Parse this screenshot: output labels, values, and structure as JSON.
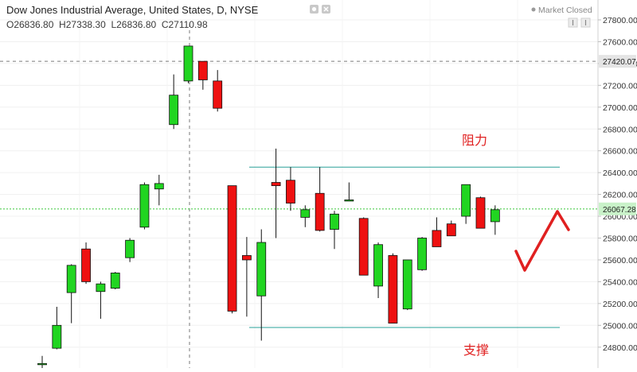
{
  "header": {
    "title": "Dow Jones Industrial Average, United States, D, NYSE",
    "ohlc": "O26836.80  H27338.30  L26836.80  C27110.98",
    "status": "Market Closed"
  },
  "price_tags": {
    "crosshair": "27420.07",
    "last": "26067.28"
  },
  "annotations": {
    "resistance": "阻力",
    "support": "支撑"
  },
  "colors": {
    "up": "#21d521",
    "down": "#ee1111",
    "outline": "#111111",
    "level_line": "#2aa198",
    "last_line": "#3ac83a",
    "annotation": "#e02020"
  },
  "chart_data": {
    "type": "candlestick",
    "title": "Dow Jones Industrial Average, United States, D, NYSE",
    "ylim": [
      24680,
      27900
    ],
    "y_ticks": [
      24800,
      25000,
      25200,
      25400,
      25600,
      25800,
      26000,
      26200,
      26400,
      26600,
      26800,
      27000,
      27200,
      27400,
      27600,
      27800
    ],
    "resistance_level": 26450,
    "support_level": 24980,
    "last_price": 26067.28,
    "crosshair_price": 27420.07,
    "candles": [
      {
        "o": 24650,
        "h": 24720,
        "l": 24600,
        "c": 24650
      },
      {
        "o": 24790,
        "h": 25170,
        "l": 24780,
        "c": 25000
      },
      {
        "o": 25300,
        "h": 25560,
        "l": 25020,
        "c": 25550
      },
      {
        "o": 25700,
        "h": 25760,
        "l": 25380,
        "c": 25400
      },
      {
        "o": 25310,
        "h": 25400,
        "l": 25060,
        "c": 25380
      },
      {
        "o": 25340,
        "h": 25490,
        "l": 25330,
        "c": 25480
      },
      {
        "o": 25620,
        "h": 25800,
        "l": 25580,
        "c": 25780
      },
      {
        "o": 25900,
        "h": 26310,
        "l": 25880,
        "c": 26290
      },
      {
        "o": 26250,
        "h": 26380,
        "l": 26100,
        "c": 26300
      },
      {
        "o": 26840,
        "h": 27300,
        "l": 26800,
        "c": 27110
      },
      {
        "o": 27240,
        "h": 27560,
        "l": 27220,
        "c": 27560
      },
      {
        "o": 27420,
        "h": 27420,
        "l": 27160,
        "c": 27250
      },
      {
        "o": 27240,
        "h": 27340,
        "l": 26960,
        "c": 26990
      },
      {
        "o": 26280,
        "h": 26280,
        "l": 25110,
        "c": 25130
      },
      {
        "o": 25640,
        "h": 25810,
        "l": 25080,
        "c": 25600
      },
      {
        "o": 25270,
        "h": 25880,
        "l": 24860,
        "c": 25760
      },
      {
        "o": 26310,
        "h": 26620,
        "l": 25800,
        "c": 26280
      },
      {
        "o": 26330,
        "h": 26450,
        "l": 26050,
        "c": 26120
      },
      {
        "o": 25990,
        "h": 26100,
        "l": 25900,
        "c": 26060
      },
      {
        "o": 26210,
        "h": 26450,
        "l": 25860,
        "c": 25870
      },
      {
        "o": 25880,
        "h": 26050,
        "l": 25700,
        "c": 26020
      },
      {
        "o": 26150,
        "h": 26310,
        "l": 26140,
        "c": 26150
      },
      {
        "o": 25980,
        "h": 25990,
        "l": 25460,
        "c": 25460
      },
      {
        "o": 25360,
        "h": 25760,
        "l": 25250,
        "c": 25740
      },
      {
        "o": 25640,
        "h": 25660,
        "l": 25020,
        "c": 25020
      },
      {
        "o": 25150,
        "h": 25600,
        "l": 25140,
        "c": 25600
      },
      {
        "o": 25510,
        "h": 25810,
        "l": 25500,
        "c": 25800
      },
      {
        "o": 25870,
        "h": 25990,
        "l": 25720,
        "c": 25720
      },
      {
        "o": 25930,
        "h": 25960,
        "l": 25840,
        "c": 25820
      },
      {
        "o": 26000,
        "h": 26290,
        "l": 25930,
        "c": 26290
      },
      {
        "o": 26170,
        "h": 26180,
        "l": 25890,
        "c": 25890
      },
      {
        "o": 25950,
        "h": 26100,
        "l": 25830,
        "c": 26060
      }
    ]
  }
}
